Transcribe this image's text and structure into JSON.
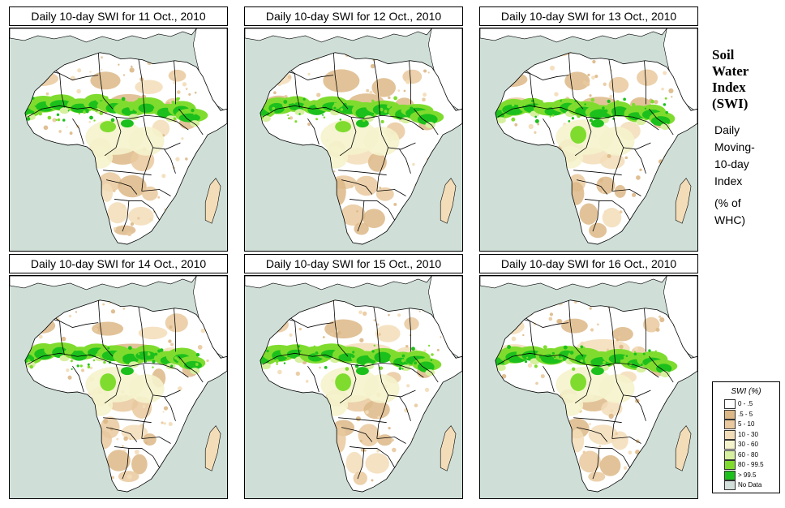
{
  "panels": [
    {
      "title": "Daily 10-day SWI for  11 Oct., 2010"
    },
    {
      "title": "Daily 10-day SWI for  12 Oct., 2010"
    },
    {
      "title": "Daily 10-day SWI for  13 Oct., 2010"
    },
    {
      "title": "Daily 10-day SWI for  14 Oct., 2010"
    },
    {
      "title": "Daily 10-day SWI for  15 Oct., 2010"
    },
    {
      "title": "Daily 10-day SWI for  16 Oct., 2010"
    }
  ],
  "side": {
    "title_lines": [
      "Soil",
      "Water",
      "Index",
      "(SWI)"
    ],
    "subtitle_lines": [
      "Daily",
      "Moving-",
      "10-day",
      "Index"
    ],
    "unit_lines": [
      "(% of",
      "WHC)"
    ]
  },
  "legend": {
    "title": "SWI (%)",
    "items": [
      {
        "label": "0 - .5",
        "color": "#ffffff"
      },
      {
        "label": ".5 - 5",
        "color": "#ddb887"
      },
      {
        "label": "5 - 10",
        "color": "#e9c99d"
      },
      {
        "label": "10 - 30",
        "color": "#f3ddb8"
      },
      {
        "label": "30 - 60",
        "color": "#f5f3cc"
      },
      {
        "label": "60 - 80",
        "color": "#d7f0a0"
      },
      {
        "label": "80 - 99.5",
        "color": "#7fdc2e"
      },
      {
        "label": "> 99.5",
        "color": "#1cc01c"
      },
      {
        "label": "No Data",
        "color": "#d3dfdb"
      }
    ]
  },
  "colors": {
    "ocean": "#cfdfd8",
    "land": "#ffffff",
    "border": "#000000"
  }
}
